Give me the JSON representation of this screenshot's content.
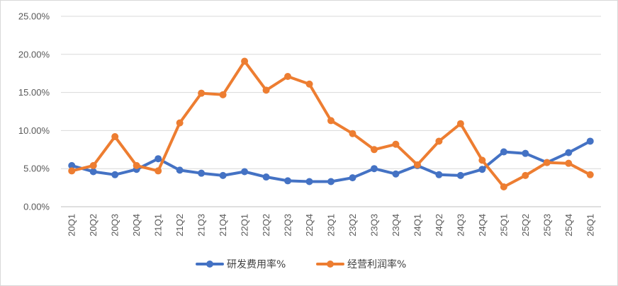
{
  "chart_data": {
    "type": "line",
    "title": "",
    "xlabel": "",
    "ylabel": "",
    "ylim": [
      0,
      25
    ],
    "yticks": [
      "0.00%",
      "5.00%",
      "10.00%",
      "15.00%",
      "20.00%",
      "25.00%"
    ],
    "categories": [
      "20Q1",
      "20Q2",
      "20Q3",
      "20Q4",
      "21Q1",
      "21Q2",
      "21Q3",
      "21Q4",
      "22Q1",
      "22Q2",
      "22Q3",
      "22Q4",
      "23Q1",
      "23Q2",
      "23Q3",
      "23Q4",
      "24Q1",
      "24Q2",
      "24Q3",
      "24Q4",
      "25Q1",
      "25Q2",
      "25Q3",
      "25Q4",
      "26Q1"
    ],
    "grid": "horizontal",
    "legend_position": "bottom",
    "series": [
      {
        "name": "研发费用率%",
        "color": "#4472C4",
        "values": [
          5.4,
          4.6,
          4.2,
          4.9,
          6.3,
          4.8,
          4.4,
          4.1,
          4.6,
          3.9,
          3.4,
          3.3,
          3.3,
          3.8,
          5.0,
          4.3,
          5.4,
          4.2,
          4.1,
          4.9,
          7.2,
          7.0,
          5.8,
          7.1,
          8.6
        ]
      },
      {
        "name": "经营利润率%",
        "color": "#ED7D31",
        "values": [
          4.7,
          5.4,
          9.2,
          5.4,
          4.7,
          11.0,
          14.9,
          14.7,
          19.1,
          15.3,
          17.1,
          16.1,
          11.3,
          9.6,
          7.5,
          8.2,
          5.5,
          8.6,
          10.9,
          6.1,
          2.6,
          4.1,
          5.8,
          5.7,
          4.2
        ]
      }
    ]
  }
}
